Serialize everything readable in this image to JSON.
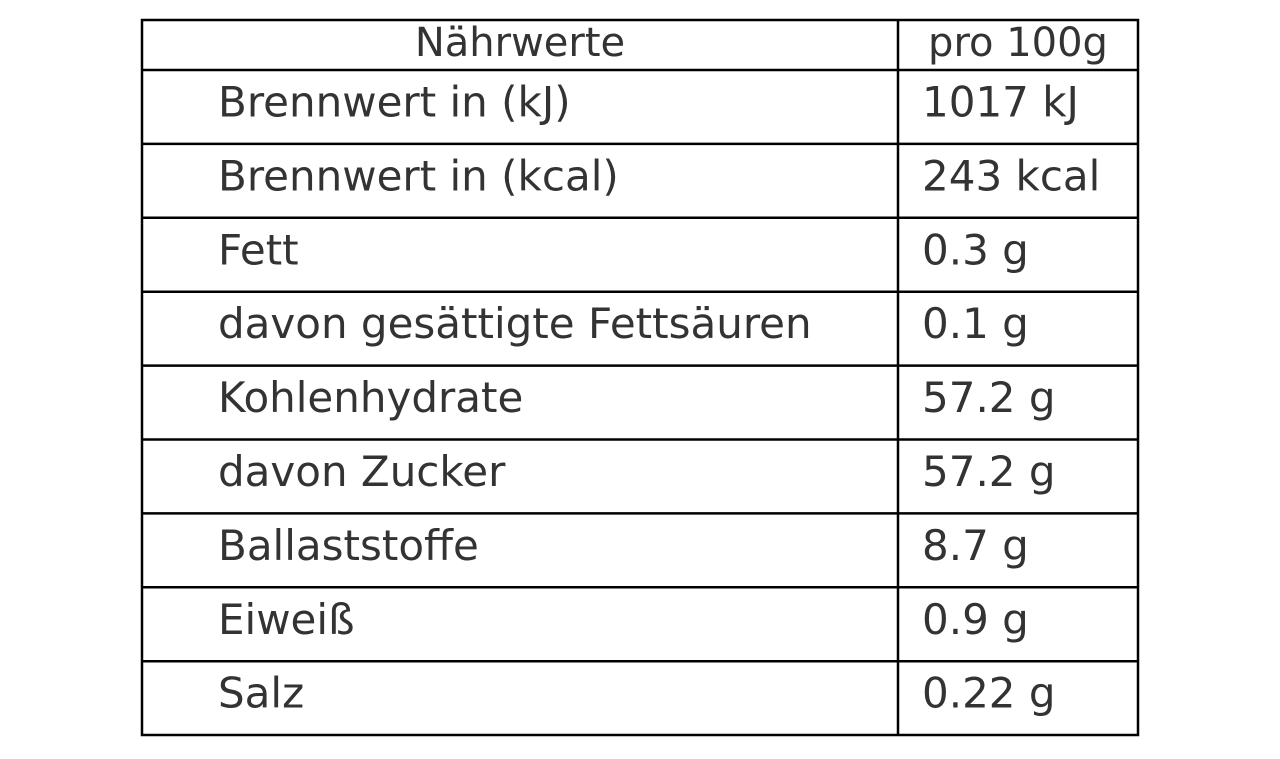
{
  "table": {
    "header": [
      "Nährwerte",
      "pro 100g"
    ],
    "rows": [
      [
        "Brennwert in (kJ)",
        "1017 kJ"
      ],
      [
        "Brennwert in (kcal)",
        "243 kcal"
      ],
      [
        "Fett",
        "0.3 g"
      ],
      [
        "davon gesättigte Fettsäuren",
        "0.1 g"
      ],
      [
        "Kohlenhydrate",
        "57.2 g"
      ],
      [
        "davon Zucker",
        "57.2 g"
      ],
      [
        "Ballaststoffe",
        "8.7 g"
      ],
      [
        "Eiweiß",
        "0.9 g"
      ],
      [
        "Salz",
        "0.22 g"
      ]
    ]
  }
}
